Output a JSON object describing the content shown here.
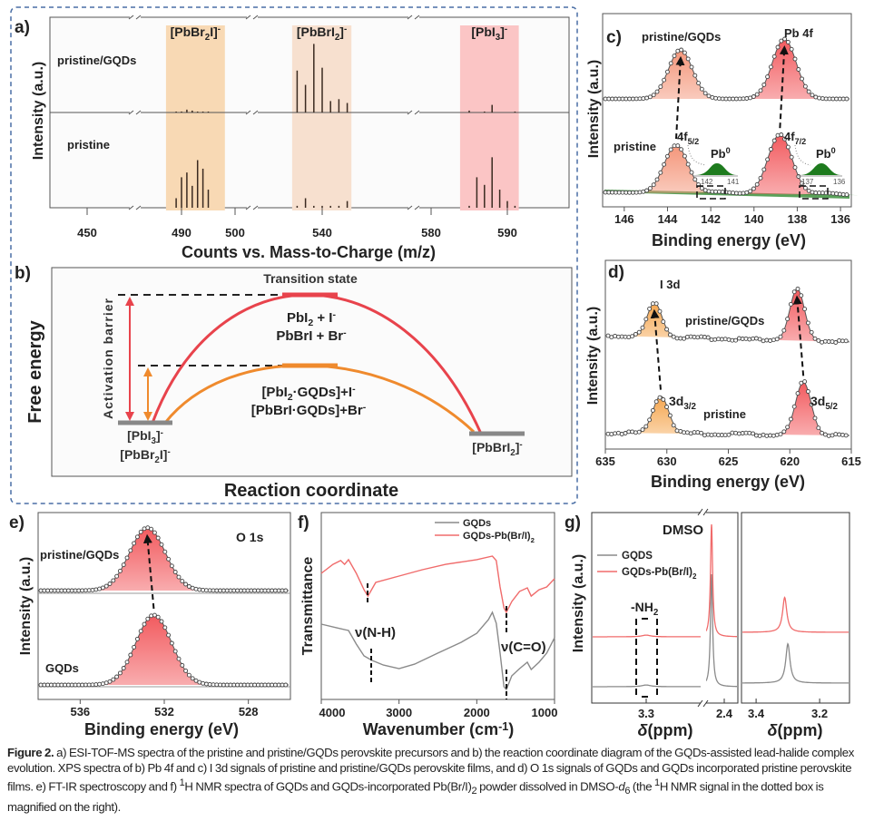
{
  "figure_caption": [
    [
      "Figure 2.",
      "b"
    ],
    [
      "  a) ESI-TOF-MS spectra of the pristine and pristine/GQDs perovskite precursors and b) the reaction coordinate diagram of the GQDs-assisted lead-halide complex evolution. XPS spectra of b) Pb 4f and c) I 3d signals of pristine and pristine/GQDs perovskite films, and d) O 1s signals of GQDs and GQDs incorporated pristine perovskite films. e) FT-IR spectroscopy and f) ",
      ""
    ],
    [
      "1",
      "sup"
    ],
    [
      "H NMR spectra of GQDs and GQDs-incorporated Pb(Br/I)",
      ""
    ],
    [
      "2",
      "sub"
    ],
    [
      " powder dissolved in DMSO-",
      ""
    ],
    [
      "d",
      "i"
    ],
    [
      "6",
      "sub"
    ],
    [
      " (the ",
      ""
    ],
    [
      "1",
      "sup"
    ],
    [
      "H NMR signal in the dotted box is magnified on the right).",
      ""
    ]
  ],
  "letters": {
    "a": "a)",
    "b": "b)",
    "c": "c)",
    "d": "d)",
    "e": "e)",
    "f": "f)",
    "g": "g)"
  },
  "panel_b": {
    "ylabel": "Free energy",
    "xlabel": "Reaction coordinate",
    "ts_label": "Transition state",
    "barrier_label": "Activation barrier",
    "red_lines": [
      [
        [
          "PbI",
          ""
        ],
        [
          "2",
          "sub"
        ],
        [
          " + I",
          ""
        ],
        [
          "-",
          "sup"
        ]
      ],
      [
        [
          "PbBrI + Br",
          ""
        ],
        [
          "-",
          "sup"
        ]
      ]
    ],
    "orange_lines": [
      [
        [
          "[PbI",
          ""
        ],
        [
          "2",
          "sub"
        ],
        [
          "·GQDs]+I",
          ""
        ],
        [
          "-",
          "sup"
        ]
      ],
      [
        [
          "[PbBrI·GQDs]+Br",
          ""
        ],
        [
          "-",
          "sup"
        ]
      ]
    ],
    "reactant_lines": [
      [
        [
          "[PbI",
          ""
        ],
        [
          "3",
          "sub"
        ],
        [
          "]",
          ""
        ],
        [
          "-",
          "sup"
        ]
      ],
      [
        [
          "[PbBr",
          ""
        ],
        [
          "2",
          "sub"
        ],
        [
          "I]",
          ""
        ],
        [
          "-",
          "sup"
        ]
      ]
    ],
    "product": [
      [
        "[PbBrI",
        ""
      ],
      [
        "2",
        "sub"
      ],
      [
        "]",
        ""
      ],
      [
        "-",
        "sup"
      ]
    ],
    "colors": {
      "uncatalyzed": "#e8434c",
      "gqds": "#ef8a2d",
      "levels": "#888888"
    }
  },
  "chart_data": [
    {
      "panel": "a",
      "type": "bar",
      "xlabel": "Counts vs. Mass-to-Charge (m/z)",
      "ylabel": "Intensity (a.u.)",
      "xticks": [
        450,
        490,
        500,
        540,
        580,
        590
      ],
      "axis_breaks": true,
      "regions": [
        {
          "label": [
            [
              "[PbBr",
              ""
            ],
            [
              "2",
              "sub"
            ],
            [
              "I]",
              ""
            ],
            [
              "-",
              "sup"
            ]
          ],
          "range": [
            487.1,
            498.1
          ],
          "color": "#f8d9b4"
        },
        {
          "label": [
            [
              "[PbBrI",
              ""
            ],
            [
              "2",
              "sub"
            ],
            [
              "]",
              ""
            ],
            [
              "-",
              "sup"
            ]
          ],
          "range": [
            536.4,
            543.5
          ],
          "color": "#f7e0cf"
        },
        {
          "label": [
            [
              "[PbI",
              ""
            ],
            [
              "3",
              "sub"
            ],
            [
              "]",
              ""
            ],
            [
              "-",
              "sup"
            ]
          ],
          "range": [
            583.8,
            591.5
          ],
          "color": "#fbc5c5"
        }
      ],
      "series": [
        {
          "name": "pristine/GQDs",
          "x": [
            489,
            490,
            491,
            492,
            493,
            494,
            495,
            537,
            538,
            539,
            540,
            541,
            542,
            543,
            585,
            586,
            587,
            588,
            589,
            590,
            591
          ],
          "values": [
            1,
            1,
            3,
            2,
            1,
            1,
            1,
            44,
            29,
            72,
            47,
            12,
            14,
            10,
            2,
            0,
            1,
            8,
            0,
            0,
            1
          ]
        },
        {
          "name": "pristine",
          "x": [
            489,
            490,
            491,
            492,
            493,
            494,
            495,
            537,
            538,
            539,
            540,
            541,
            542,
            543,
            585,
            586,
            587,
            588,
            589,
            590,
            591
          ],
          "values": [
            10,
            32,
            37,
            23,
            50,
            41,
            19,
            2,
            10,
            2,
            2,
            2,
            2,
            7,
            2,
            32,
            24,
            53,
            19,
            7,
            2
          ]
        }
      ]
    },
    {
      "panel": "c",
      "type": "line",
      "title": "Pb 4f",
      "xlabel": "Binding energy (eV)",
      "ylabel": "Intensity (a.u.)",
      "xlim": [
        147,
        135.5
      ],
      "xticks": [
        146,
        144,
        142,
        140,
        138,
        136
      ],
      "series": [
        {
          "name": "pristine/GQDs",
          "peaks": [
            {
              "center": 143.4,
              "height": 0.82,
              "fwhm": 1.3,
              "color": "#f4967a"
            },
            {
              "center": 138.6,
              "height": 1.0,
              "fwhm": 1.3,
              "color": "#f25a5e"
            }
          ]
        },
        {
          "name": "pristine",
          "peaks": [
            {
              "label": [
                [
                  "4f",
                  ""
                ],
                [
                  "5/2",
                  "sub"
                ]
              ],
              "center": 143.6,
              "height": 0.8,
              "fwhm": 1.3,
              "color": "#f4967a"
            },
            {
              "label": [
                [
                  "4f",
                  ""
                ],
                [
                  "7/2",
                  "sub"
                ]
              ],
              "center": 138.8,
              "height": 1.0,
              "fwhm": 1.3,
              "color": "#f25a5e"
            },
            {
              "center": 141.6,
              "height": 0.03,
              "fwhm": 1.2,
              "color": "#1e7b1e"
            },
            {
              "center": 136.7,
              "height": 0.03,
              "fwhm": 1.2,
              "color": "#1e7b1e"
            }
          ]
        }
      ],
      "insets": [
        {
          "label": [
            [
              "Pb",
              ""
            ],
            [
              "0",
              "sup"
            ]
          ],
          "ticks": [
            "142",
            "141"
          ],
          "color": "#1e7b1e"
        },
        {
          "label": [
            [
              "Pb",
              ""
            ],
            [
              "0",
              "sup"
            ]
          ],
          "ticks": [
            "137",
            "136"
          ],
          "color": "#1e7b1e"
        }
      ]
    },
    {
      "panel": "d",
      "type": "line",
      "title": "I 3d",
      "xlabel": "Binding energy (eV)",
      "ylabel": "Intensity (a.u.)",
      "xlim": [
        635,
        615
      ],
      "xticks": [
        635,
        630,
        625,
        620,
        615
      ],
      "series": [
        {
          "name": "pristine/GQDs",
          "peaks": [
            {
              "center": 631.0,
              "height": 0.66,
              "fwhm": 1.4,
              "color": "#f5a64f"
            },
            {
              "center": 619.4,
              "height": 1.0,
              "fwhm": 1.4,
              "color": "#f25a5e"
            }
          ]
        },
        {
          "name": "pristine",
          "peaks": [
            {
              "label": [
                [
                  "3d",
                  ""
                ],
                [
                  "3/2",
                  "sub"
                ]
              ],
              "center": 630.5,
              "height": 0.72,
              "fwhm": 1.5,
              "color": "#f5a64f"
            },
            {
              "label": [
                [
                  "3d",
                  ""
                ],
                [
                  "5/2",
                  "sub"
                ]
              ],
              "center": 618.9,
              "height": 1.02,
              "fwhm": 1.5,
              "color": "#f25a5e"
            }
          ]
        }
      ]
    },
    {
      "panel": "e",
      "type": "line",
      "title": "O 1s",
      "xlabel": "Binding energy (eV)",
      "ylabel": "Intensity (a.u.)",
      "xlim": [
        538,
        526
      ],
      "xticks": [
        536,
        532,
        528
      ],
      "series": [
        {
          "name": "pristine/GQDs",
          "peaks": [
            {
              "center": 532.8,
              "height": 0.9,
              "fwhm": 2.0,
              "color": "#f25a5e"
            }
          ]
        },
        {
          "name": "GQDs",
          "peaks": [
            {
              "center": 532.5,
              "height": 1.0,
              "fwhm": 2.0,
              "color": "#f25a5e"
            }
          ]
        }
      ]
    },
    {
      "panel": "f",
      "type": "line",
      "xlabel": [
        [
          "Wavenumber (cm",
          ""
        ],
        [
          "-1",
          "sup"
        ],
        [
          ")",
          ""
        ]
      ],
      "ylabel": "Transmittance",
      "xlim": [
        4000,
        1000
      ],
      "xticks": [
        4000,
        3000,
        2000,
        1000
      ],
      "legend": "top-right",
      "annotations": [
        {
          "label": "ν(N-H)",
          "x": 3400
        },
        {
          "label": "ν(C=O)",
          "x": 1620
        }
      ],
      "series": [
        {
          "name": [
            [
              "GQDs",
              ""
            ]
          ],
          "color": "#8a8a8a",
          "x": [
            4000,
            3800,
            3650,
            3550,
            3450,
            3350,
            3200,
            3000,
            2800,
            2500,
            2200,
            2000,
            1850,
            1800,
            1750,
            1700,
            1650,
            1620,
            1550,
            1450,
            1350,
            1300,
            1200,
            1100,
            1000
          ],
          "y": [
            40.3,
            38.3,
            36.9,
            29.6,
            23.3,
            20.9,
            18.4,
            16.5,
            18.9,
            24.8,
            30.6,
            35.4,
            42.7,
            46.6,
            40.8,
            24.8,
            6.8,
            5.3,
            12.6,
            16.5,
            19.9,
            16.0,
            19.9,
            24.8,
            33.0
          ]
        },
        {
          "name": [
            [
              "GQDs-Pb(Br/I)",
              ""
            ],
            [
              "2",
              "sub"
            ]
          ],
          "color": "#f06b6b",
          "x": [
            4000,
            3850,
            3750,
            3700,
            3650,
            3550,
            3450,
            3400,
            3300,
            3000,
            2700,
            2400,
            2000,
            1800,
            1750,
            1700,
            1650,
            1620,
            1550,
            1450,
            1350,
            1300,
            1200,
            1100,
            1000
          ],
          "y": [
            67.5,
            72.3,
            74.3,
            72.3,
            74.8,
            67.5,
            58.7,
            55.3,
            62.6,
            66.0,
            69.4,
            72.3,
            74.8,
            76.7,
            74.3,
            60.2,
            49.0,
            46.6,
            52.4,
            57.8,
            59.7,
            55.3,
            58.7,
            60.2,
            64.6
          ]
        }
      ]
    },
    {
      "panel": "g",
      "type": "line",
      "xlabel": [
        [
          "δ",
          "i"
        ],
        [
          "(ppm)",
          ""
        ]
      ],
      "ylabel": "Intensity (a.u.)",
      "xticks_main": [
        "3.3",
        "2.4"
      ],
      "xticks_inset": [
        "3.4",
        "3.2"
      ],
      "xlim_inset": [
        3.446,
        3.106
      ],
      "axis_breaks": true,
      "legend": "top-left",
      "annotations": {
        "solvent": "DMSO",
        "group": [
          [
            "-NH",
            ""
          ],
          [
            "2",
            "sub"
          ]
        ]
      },
      "series": [
        {
          "name": [
            [
              "GQDS",
              ""
            ]
          ],
          "color": "#8a8a8a",
          "main_peaks": [
            {
              "center": 2.5,
              "height": 100,
              "width": 0.01
            },
            {
              "center": 3.3,
              "height": 1.5,
              "width": 0.02
            }
          ],
          "inset_peaks": [
            {
              "center": 3.3,
              "height": 35,
              "width": 0.008
            }
          ]
        },
        {
          "name": [
            [
              "GQDs-Pb(Br/I)",
              ""
            ],
            [
              "2",
              "sub"
            ]
          ],
          "color": "#f06b6b",
          "main_peaks": [
            {
              "center": 2.5,
              "height": 100,
              "width": 0.01
            },
            {
              "center": 3.3,
              "height": 1.5,
              "width": 0.02
            }
          ],
          "inset_peaks": [
            {
              "center": 3.31,
              "height": 31,
              "width": 0.008
            }
          ]
        }
      ]
    }
  ]
}
